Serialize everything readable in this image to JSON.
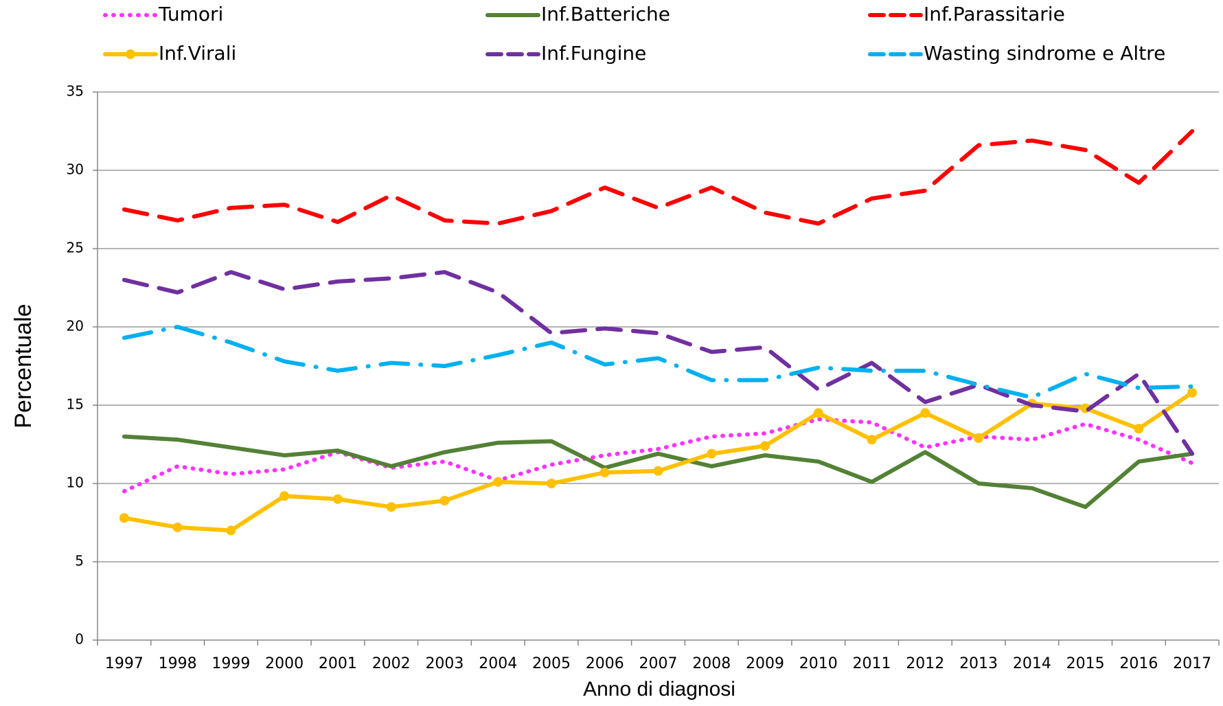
{
  "chart_data": {
    "type": "line",
    "x_label": "Anno di diagnosi",
    "y_label": "Percentuale",
    "categories": [
      "1997",
      "1998",
      "1999",
      "2000",
      "2001",
      "2002",
      "2003",
      "2004",
      "2005",
      "2006",
      "2007",
      "2008",
      "2009",
      "2010",
      "2011",
      "2012",
      "2013",
      "2014",
      "2015",
      "2016",
      "2017"
    ],
    "ylim": [
      0,
      35
    ],
    "yticks": [
      0,
      5,
      10,
      15,
      20,
      25,
      30,
      35
    ],
    "grid": true,
    "series": [
      {
        "name": "Tumori",
        "color": "#ff33ff",
        "style": "dotted",
        "values": [
          9.5,
          11.1,
          10.6,
          10.9,
          12.0,
          11.0,
          11.4,
          10.2,
          11.2,
          11.8,
          12.2,
          13.0,
          13.2,
          14.1,
          13.9,
          12.3,
          13.0,
          12.8,
          13.8,
          12.8,
          11.3
        ]
      },
      {
        "name": "Inf.Batteriche",
        "color": "#538135",
        "style": "solid",
        "values": [
          13.0,
          12.8,
          12.3,
          11.8,
          12.1,
          11.1,
          12.0,
          12.6,
          12.7,
          11.0,
          11.9,
          11.1,
          11.8,
          11.4,
          10.1,
          12.0,
          10.0,
          9.7,
          8.5,
          11.4,
          11.9
        ]
      },
      {
        "name": "Inf.Parassitarie",
        "color": "#ff0000",
        "style": "dashed",
        "values": [
          27.5,
          26.8,
          27.6,
          27.8,
          26.7,
          28.4,
          26.8,
          26.6,
          27.4,
          28.9,
          27.6,
          28.9,
          27.3,
          26.6,
          28.2,
          28.7,
          31.6,
          31.9,
          31.3,
          29.2,
          32.5
        ]
      },
      {
        "name": "Inf.Virali",
        "color": "#ffc000",
        "style": "solid",
        "marker": true,
        "values": [
          7.8,
          7.2,
          7.0,
          9.2,
          9.0,
          8.5,
          8.9,
          10.1,
          10.0,
          10.7,
          10.8,
          11.9,
          12.4,
          14.5,
          12.8,
          14.5,
          12.9,
          15.1,
          14.8,
          13.5,
          15.8
        ]
      },
      {
        "name": "Inf.Fungine",
        "color": "#7030a0",
        "style": "dashed",
        "values": [
          23.0,
          22.2,
          23.5,
          22.4,
          22.9,
          23.1,
          23.5,
          22.2,
          19.6,
          19.9,
          19.6,
          18.4,
          18.7,
          16.0,
          17.7,
          15.2,
          16.3,
          15.0,
          14.6,
          17.0,
          11.9
        ]
      },
      {
        "name": "Wasting sindrome e Altre",
        "color": "#00b0f0",
        "style": "dash-dot",
        "values": [
          19.3,
          20.0,
          19.0,
          17.8,
          17.2,
          17.7,
          17.5,
          18.2,
          19.0,
          17.6,
          18.0,
          16.6,
          16.6,
          17.4,
          17.2,
          17.2,
          16.3,
          15.5,
          17.0,
          16.1,
          16.2
        ]
      }
    ]
  }
}
